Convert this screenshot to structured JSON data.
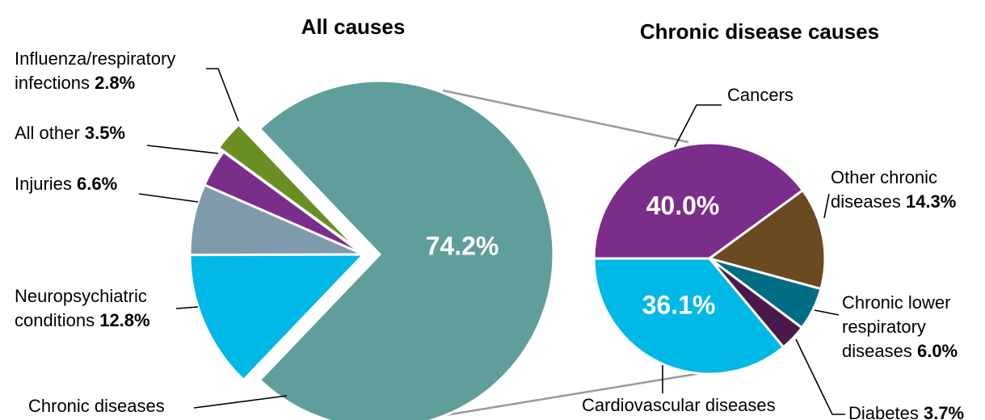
{
  "chart_data": [
    {
      "type": "pie",
      "title": "All causes",
      "categories": [
        "Influenza/respiratory infections",
        "All other",
        "Injuries",
        "Neuropsychiatric conditions",
        "Chronic diseases"
      ],
      "values": [
        2.8,
        3.5,
        6.6,
        12.8,
        74.2
      ],
      "value_labels": [
        "2.8%",
        "3.5%",
        "6.6%",
        "12.8%",
        "74.2%"
      ],
      "colors": [
        "#6b8e23",
        "#7b2d8a",
        "#7f9aab",
        "#00b8e6",
        "#5f9e9a"
      ]
    },
    {
      "type": "pie",
      "title": "Chronic disease causes",
      "categories": [
        "Cancers",
        "Other chronic diseases",
        "Chronic lower respiratory diseases",
        "Diabetes",
        "Cardiovascular diseases"
      ],
      "values": [
        40.0,
        14.3,
        6.0,
        3.7,
        36.1
      ],
      "value_labels": [
        "40.0%",
        "14.3%",
        "6.0%",
        "3.7%",
        "36.1%"
      ],
      "colors": [
        "#7b2d8a",
        "#6b4a22",
        "#006d87",
        "#4a1a4a",
        "#00b8e6"
      ]
    }
  ]
}
